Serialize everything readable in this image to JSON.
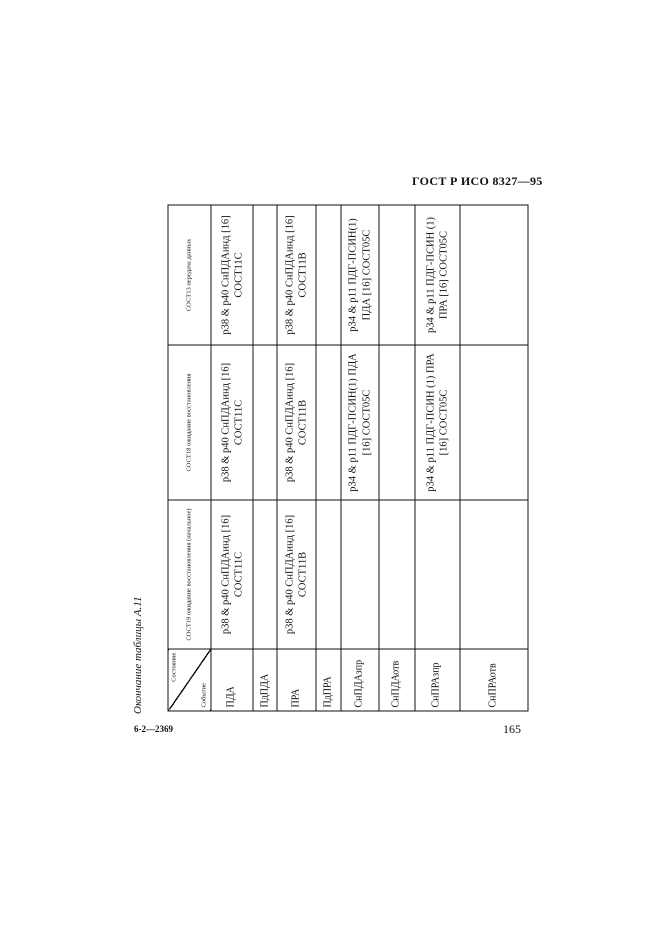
{
  "header": {
    "standard": "ГОСТ Р ИСО 8327—95"
  },
  "caption": "Окончание таблицы А.11",
  "table": {
    "corner": {
      "state": "Состояние",
      "event": "Событие"
    },
    "columns": [
      "СОСТ19 ожидание восстановления (начальное)",
      "СОСТ18 ожидание восстановления",
      "СОСТ13 передача данных"
    ],
    "rows": [
      {
        "event": "ПДА",
        "cells": [
          "p38 & p40 СнПДАинд [16] СОСТ11С",
          "p38 & p40 СнПДАинд [16] СОСТ11С",
          "p38 & p40 СнПДАинд [16] СОСТ11С"
        ]
      },
      {
        "event": "ПдПДА",
        "cells": [
          "",
          "",
          ""
        ]
      },
      {
        "event": "ПРА",
        "cells": [
          "p38 & p40 СнПДАинд [16] СОСТ11В",
          "p38 & p40 СнПДАинд [16] СОСТ11В",
          "p38 & p40 СнПДАинд [16] СОСТ11В"
        ]
      },
      {
        "event": "ПдПРА",
        "cells": [
          "",
          "",
          ""
        ]
      },
      {
        "event": "СнПДАзпр",
        "cells": [
          "",
          "p34 & p11 ПДГ-ПСИН(1) ПДА [16] СОСТ05С",
          "p34 & p11 ПДГ-ПСИН(1) ПДА [16] СОСТ05С"
        ]
      },
      {
        "event": "СнПДАотв",
        "cells": [
          "",
          "",
          ""
        ]
      },
      {
        "event": "СнПРАзпр",
        "cells": [
          "",
          "p34 & p11 ПДГ-ПСИН (1) ПРА [16] СОСТ05С",
          "p34 & p11 ПДГ-ПСИН (1) ПРА [16] СОСТ05С"
        ]
      },
      {
        "event": "СнПРАотв",
        "cells": [
          "",
          "",
          ""
        ]
      }
    ]
  },
  "footer": {
    "code": "6-2—2369",
    "page": "165"
  }
}
